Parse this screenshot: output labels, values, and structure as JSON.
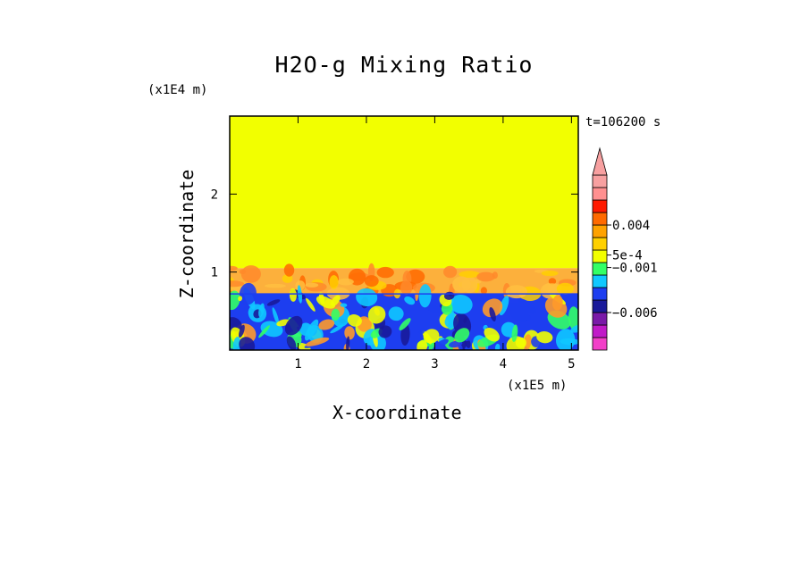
{
  "chart_data": {
    "type": "heatmap",
    "title": "H2O-g Mixing Ratio",
    "xlabel": "X-coordinate",
    "ylabel": "Z-coordinate",
    "x_multiplier": "(x1E5 m)",
    "z_multiplier": "(x1E4 m)",
    "time_label": "t=106200 s",
    "xlim": [
      0,
      5.1
    ],
    "ylim": [
      0,
      3.0
    ],
    "x_ticks": [
      1,
      2,
      3,
      4,
      5
    ],
    "y_ticks": [
      1,
      2
    ],
    "background_value": "yellow band",
    "features": [
      {
        "name": "upper-layer",
        "z_range": [
          1.05,
          3.0
        ],
        "color": "#f2ff00"
      },
      {
        "name": "mixing-band",
        "z_range": [
          0.72,
          1.05
        ],
        "color": "#fcb03c"
      },
      {
        "name": "lower-layer",
        "z_range": [
          0.0,
          0.72
        ],
        "color": "#1d3ef0"
      }
    ],
    "colorbar": {
      "colors": [
        "#f23fc8",
        "#c01ac8",
        "#7a1aa8",
        "#1a1a9a",
        "#1d3ef0",
        "#10c8ff",
        "#33ff66",
        "#f2ff00",
        "#ffd000",
        "#ffa200",
        "#ff6a00",
        "#ff1a00",
        "#ff9090",
        "#f7a0a0"
      ],
      "labels": [
        {
          "text": "0.004",
          "index": 10
        },
        {
          "text": "5e-4",
          "index": 7.6
        },
        {
          "text": "−0.001",
          "index": 6.6
        },
        {
          "text": "−0.006",
          "index": 3.0
        }
      ],
      "extend": "max"
    }
  }
}
